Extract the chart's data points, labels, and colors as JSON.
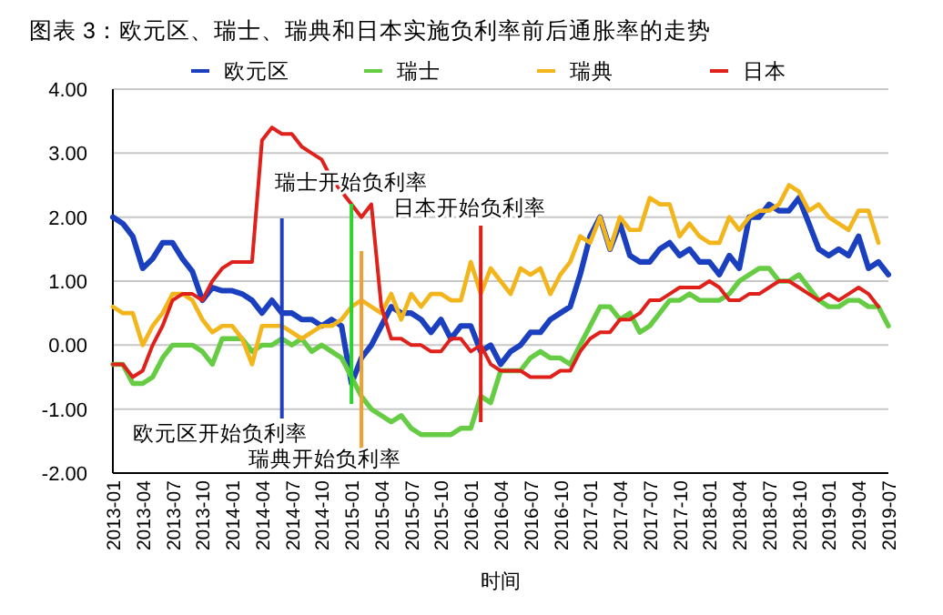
{
  "chart_data": {
    "type": "line",
    "title": "图表 3：欧元区、瑞士、瑞典和日本实施负利率前后通胀率的走势",
    "xlabel": "时间",
    "x": [
      "2013-01",
      "2013-02",
      "2013-03",
      "2013-04",
      "2013-05",
      "2013-06",
      "2013-07",
      "2013-08",
      "2013-09",
      "2013-10",
      "2013-11",
      "2013-12",
      "2014-01",
      "2014-02",
      "2014-03",
      "2014-04",
      "2014-05",
      "2014-06",
      "2014-07",
      "2014-08",
      "2014-09",
      "2014-10",
      "2014-11",
      "2014-12",
      "2015-01",
      "2015-02",
      "2015-03",
      "2015-04",
      "2015-05",
      "2015-06",
      "2015-07",
      "2015-08",
      "2015-09",
      "2015-10",
      "2015-11",
      "2015-12",
      "2016-01",
      "2016-02",
      "2016-03",
      "2016-04",
      "2016-05",
      "2016-06",
      "2016-07",
      "2016-08",
      "2016-09",
      "2016-10",
      "2016-11",
      "2016-12",
      "2017-01",
      "2017-02",
      "2017-03",
      "2017-04",
      "2017-05",
      "2017-06",
      "2017-07",
      "2017-08",
      "2017-09",
      "2017-10",
      "2017-11",
      "2017-12",
      "2018-01",
      "2018-02",
      "2018-03",
      "2018-04",
      "2018-05",
      "2018-06",
      "2018-07",
      "2018-08",
      "2018-09",
      "2018-10",
      "2018-11",
      "2018-12",
      "2019-01",
      "2019-02",
      "2019-03",
      "2019-04",
      "2019-05",
      "2019-06",
      "2019-07"
    ],
    "xlim": [
      "2013-01",
      "2019-07"
    ],
    "xticks": [
      "2013-01",
      "2013-04",
      "2013-07",
      "2013-10",
      "2014-01",
      "2014-04",
      "2014-07",
      "2014-10",
      "2015-01",
      "2015-04",
      "2015-07",
      "2015-10",
      "2016-01",
      "2016-04",
      "2016-07",
      "2016-10",
      "2017-01",
      "2017-04",
      "2017-07",
      "2017-10",
      "2018-01",
      "2018-04",
      "2018-07",
      "2018-10",
      "2019-01",
      "2019-04",
      "2019-07"
    ],
    "ylim": [
      -2,
      4
    ],
    "yticks": [
      {
        "value": -2,
        "label": "-2.00"
      },
      {
        "value": -1,
        "label": "-1.00"
      },
      {
        "value": 0,
        "label": "0.00"
      },
      {
        "value": 1,
        "label": "1.00"
      },
      {
        "value": 2,
        "label": "2.00"
      },
      {
        "value": 3,
        "label": "3.00"
      },
      {
        "value": 4,
        "label": "4.00"
      }
    ],
    "grid": "y",
    "legend": "top",
    "series": [
      {
        "name": "欧元区",
        "color": "#1a3fbf",
        "values": [
          2.0,
          1.9,
          1.7,
          1.2,
          1.35,
          1.6,
          1.6,
          1.35,
          1.15,
          0.7,
          0.9,
          0.85,
          0.85,
          0.8,
          0.7,
          0.5,
          0.7,
          0.5,
          0.5,
          0.4,
          0.4,
          0.3,
          0.4,
          0.3,
          -0.6,
          -0.2,
          0.0,
          0.3,
          0.6,
          0.5,
          0.5,
          0.4,
          0.2,
          0.4,
          0.1,
          0.3,
          0.3,
          -0.1,
          0.0,
          -0.3,
          -0.1,
          0.0,
          0.2,
          0.2,
          0.4,
          0.5,
          0.6,
          1.1,
          1.7,
          2.0,
          1.5,
          1.9,
          1.4,
          1.3,
          1.3,
          1.5,
          1.6,
          1.4,
          1.5,
          1.3,
          1.3,
          1.1,
          1.4,
          1.2,
          2.0,
          2.0,
          2.2,
          2.1,
          2.1,
          2.3,
          1.9,
          1.5,
          1.4,
          1.5,
          1.4,
          1.7,
          1.2,
          1.3,
          1.1
        ]
      },
      {
        "name": "瑞士",
        "color": "#66cc44",
        "values": [
          -0.3,
          -0.3,
          -0.6,
          -0.6,
          -0.5,
          -0.2,
          0.0,
          0.0,
          0.0,
          -0.1,
          -0.3,
          0.1,
          0.1,
          0.1,
          -0.1,
          0.0,
          0.0,
          0.1,
          0.0,
          0.1,
          -0.1,
          0.0,
          -0.1,
          -0.2,
          -0.5,
          -0.8,
          -1.0,
          -1.1,
          -1.2,
          -1.1,
          -1.3,
          -1.4,
          -1.4,
          -1.4,
          -1.4,
          -1.3,
          -1.3,
          -0.8,
          -0.9,
          -0.4,
          -0.4,
          -0.4,
          -0.2,
          -0.1,
          -0.2,
          -0.2,
          -0.3,
          0.0,
          0.3,
          0.6,
          0.6,
          0.4,
          0.5,
          0.2,
          0.3,
          0.5,
          0.7,
          0.7,
          0.8,
          0.7,
          0.7,
          0.7,
          0.8,
          1.0,
          1.1,
          1.2,
          1.2,
          1.0,
          1.0,
          1.1,
          0.9,
          0.7,
          0.6,
          0.6,
          0.7,
          0.7,
          0.6,
          0.6,
          0.3
        ]
      },
      {
        "name": "瑞典",
        "color": "#f2b51c",
        "values": [
          0.6,
          0.5,
          0.5,
          0.0,
          0.3,
          0.5,
          0.8,
          0.8,
          0.7,
          0.4,
          0.2,
          0.3,
          0.3,
          0.1,
          -0.3,
          0.3,
          0.3,
          0.3,
          0.2,
          0.1,
          0.2,
          0.3,
          0.3,
          0.4,
          0.6,
          0.7,
          0.6,
          0.5,
          0.8,
          0.4,
          0.8,
          0.6,
          0.8,
          0.8,
          0.7,
          0.7,
          1.3,
          0.8,
          1.2,
          1.0,
          0.8,
          1.2,
          1.1,
          1.2,
          0.8,
          1.1,
          1.3,
          1.7,
          1.6,
          2.0,
          1.5,
          2.0,
          1.8,
          1.8,
          2.3,
          2.2,
          2.2,
          1.7,
          1.9,
          1.7,
          1.6,
          1.6,
          2.0,
          1.8,
          2.0,
          2.1,
          2.1,
          2.2,
          2.5,
          2.4,
          2.1,
          2.2,
          2.0,
          1.9,
          1.8,
          2.1,
          2.1,
          1.6,
          null
        ]
      },
      {
        "name": "日本",
        "color": "#e0201a",
        "values": [
          -0.3,
          -0.3,
          -0.5,
          -0.4,
          0.0,
          0.3,
          0.7,
          0.8,
          0.8,
          0.7,
          1.0,
          1.2,
          1.3,
          1.3,
          1.3,
          3.2,
          3.4,
          3.3,
          3.3,
          3.1,
          3.0,
          2.9,
          2.6,
          2.4,
          2.2,
          2.0,
          2.2,
          0.6,
          0.1,
          0.1,
          0.0,
          0.0,
          -0.1,
          -0.1,
          0.1,
          0.1,
          -0.1,
          0.0,
          -0.3,
          -0.4,
          -0.4,
          -0.4,
          -0.5,
          -0.5,
          -0.5,
          -0.4,
          -0.4,
          -0.1,
          0.1,
          0.2,
          0.2,
          0.4,
          0.4,
          0.5,
          0.7,
          0.7,
          0.8,
          0.9,
          0.9,
          0.9,
          1.0,
          0.9,
          0.7,
          0.7,
          0.8,
          0.8,
          0.9,
          1.0,
          1.0,
          0.9,
          0.8,
          0.7,
          0.8,
          0.7,
          0.8,
          0.9,
          0.8,
          0.6,
          null
        ]
      }
    ],
    "ref_lines": [
      {
        "axis": "x",
        "value": "2014-06",
        "label": "欧元区开始负利率",
        "color": "#1f3fbf"
      },
      {
        "axis": "x",
        "value": "2015-01",
        "label": "瑞士开始负利率",
        "color": "#2ed12e"
      },
      {
        "axis": "x",
        "value": "2015-02",
        "label": "瑞典开始负利率",
        "color": "#f0a030"
      },
      {
        "axis": "x",
        "value": "2016-02",
        "label": "日本开始负利率",
        "color": "#e0201a"
      }
    ]
  }
}
